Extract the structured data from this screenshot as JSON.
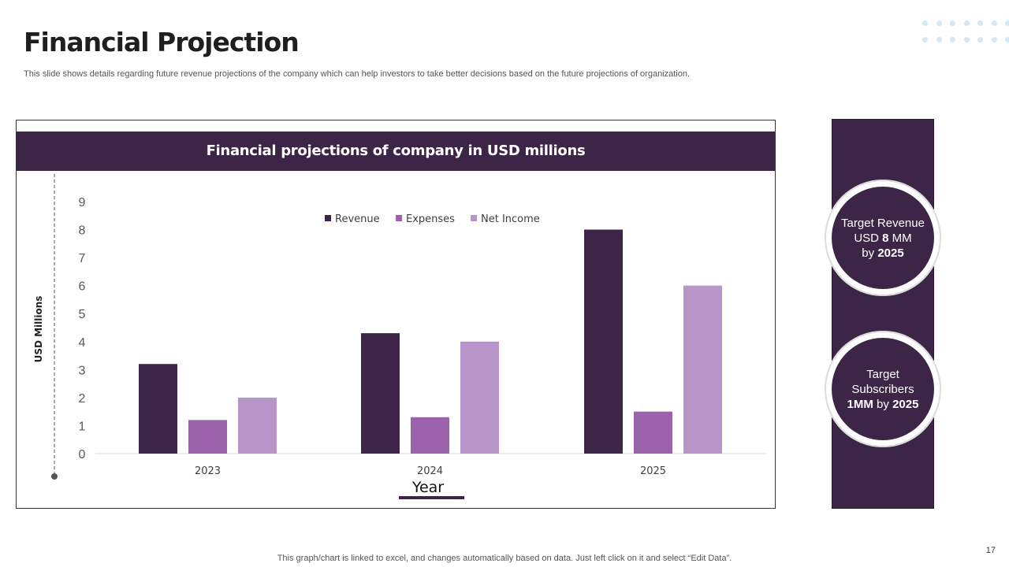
{
  "slide": {
    "title": "Financial Projection",
    "subtitle": "This slide shows details regarding future revenue projections of the company which can help investors to take better decisions based on the future projections of organization.",
    "footer": "This graph/chart is linked to excel,  and changes automatically based on data. Just left click on it and select “Edit Data”.",
    "page_number": "17"
  },
  "chart_header": "Financial projections of company in USD millions",
  "colors": {
    "revenue": "#3d2548",
    "expenses": "#9a63ab",
    "net_income": "#b895c8",
    "panel": "#3d2548"
  },
  "targets": [
    {
      "line1": "Target Revenue",
      "line2_pre": "USD ",
      "line2_bold": "8",
      "line2_post": " MM",
      "line3_pre": "by ",
      "line3_bold": "2025"
    },
    {
      "line1": "Target",
      "line2": "Subscribers",
      "line3_bold": "1MM",
      "line3_post": " by ",
      "line3_bold2": "2025"
    }
  ],
  "chart_data": {
    "type": "bar",
    "categories": [
      "2023",
      "2024",
      "2025"
    ],
    "series": [
      {
        "name": "Revenue",
        "values": [
          3.2,
          4.3,
          8.0
        ]
      },
      {
        "name": "Expenses",
        "values": [
          1.2,
          1.3,
          1.5
        ]
      },
      {
        "name": "Net Income",
        "values": [
          2.0,
          4.0,
          6.0
        ]
      }
    ],
    "title": "",
    "xlabel": "Year",
    "ylabel": "USD  Millions",
    "ylim": [
      0,
      9
    ],
    "yticks": [
      "0",
      "1",
      "2",
      "3",
      "4",
      "5",
      "6",
      "7",
      "8",
      "9"
    ],
    "legend": "top-center",
    "grid": false
  }
}
